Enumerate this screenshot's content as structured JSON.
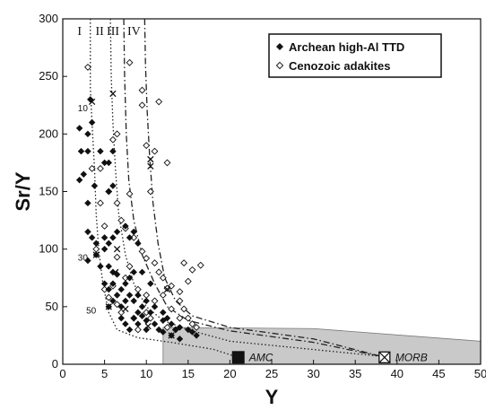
{
  "chart_data": {
    "type": "scatter",
    "xlabel": "Y",
    "ylabel": "Sr/Y",
    "xlim": [
      0,
      50
    ],
    "ylim": [
      0,
      300
    ],
    "xticks": [
      0,
      5,
      10,
      15,
      20,
      25,
      30,
      35,
      40,
      45,
      50
    ],
    "yticks": [
      0,
      50,
      100,
      150,
      200,
      250,
      300
    ],
    "grid": false,
    "legend_position": "top-right",
    "series": [
      {
        "name": "Archean high-Al TTD",
        "marker": "filled-diamond",
        "points": [
          [
            2.0,
            205
          ],
          [
            2.2,
            185
          ],
          [
            2.5,
            165
          ],
          [
            2.0,
            160
          ],
          [
            3.0,
            200
          ],
          [
            3.3,
            230
          ],
          [
            3.5,
            210
          ],
          [
            3.0,
            185
          ],
          [
            4.5,
            185
          ],
          [
            5.0,
            175
          ],
          [
            5.5,
            175
          ],
          [
            6.0,
            185
          ],
          [
            3.0,
            140
          ],
          [
            3.8,
            155
          ],
          [
            5.5,
            150
          ],
          [
            6.0,
            155
          ],
          [
            3.0,
            115
          ],
          [
            3.5,
            110
          ],
          [
            4.0,
            105
          ],
          [
            3.0,
            90
          ],
          [
            4.0,
            95
          ],
          [
            5.0,
            100
          ],
          [
            5.0,
            110
          ],
          [
            5.5,
            105
          ],
          [
            6.0,
            110
          ],
          [
            6.5,
            115
          ],
          [
            7.5,
            120
          ],
          [
            8.0,
            110
          ],
          [
            8.5,
            115
          ],
          [
            9.0,
            105
          ],
          [
            4.5,
            85
          ],
          [
            5.5,
            85
          ],
          [
            6.0,
            80
          ],
          [
            6.5,
            78
          ],
          [
            5.0,
            70
          ],
          [
            5.5,
            65
          ],
          [
            6.0,
            70
          ],
          [
            6.5,
            60
          ],
          [
            7.0,
            65
          ],
          [
            7.5,
            70
          ],
          [
            8.0,
            75
          ],
          [
            8.5,
            80
          ],
          [
            9.5,
            80
          ],
          [
            10.5,
            70
          ],
          [
            5.5,
            50
          ],
          [
            6.0,
            55
          ],
          [
            7.0,
            50
          ],
          [
            7.5,
            55
          ],
          [
            8.0,
            60
          ],
          [
            8.5,
            55
          ],
          [
            9.0,
            60
          ],
          [
            9.5,
            50
          ],
          [
            10.0,
            55
          ],
          [
            11.0,
            50
          ],
          [
            12.0,
            45
          ],
          [
            7.0,
            40
          ],
          [
            7.5,
            35
          ],
          [
            8.0,
            30
          ],
          [
            8.5,
            40
          ],
          [
            9.0,
            35
          ],
          [
            9.5,
            42
          ],
          [
            10.0,
            38
          ],
          [
            10.5,
            45
          ],
          [
            11.0,
            35
          ],
          [
            11.5,
            30
          ],
          [
            12.0,
            38
          ],
          [
            12.5,
            40
          ],
          [
            13.0,
            35
          ],
          [
            13.5,
            30
          ],
          [
            14.0,
            32
          ],
          [
            15.0,
            30
          ],
          [
            15.5,
            28
          ],
          [
            16.0,
            25
          ],
          [
            12.0,
            28
          ],
          [
            13.0,
            25
          ],
          [
            14.0,
            22
          ],
          [
            9.0,
            45
          ],
          [
            10.0,
            30
          ]
        ]
      },
      {
        "name": "Cenozoic adakites",
        "marker": "open-diamond",
        "points": [
          [
            3.0,
            258
          ],
          [
            8.0,
            262
          ],
          [
            9.5,
            238
          ],
          [
            9.5,
            225
          ],
          [
            10.0,
            190
          ],
          [
            11.5,
            228
          ],
          [
            11.0,
            185
          ],
          [
            12.5,
            175
          ],
          [
            10.5,
            150
          ],
          [
            8.0,
            148
          ],
          [
            5.5,
            150
          ],
          [
            6.0,
            195
          ],
          [
            6.5,
            200
          ],
          [
            3.5,
            170
          ],
          [
            4.5,
            170
          ],
          [
            7.0,
            125
          ],
          [
            7.5,
            118
          ],
          [
            8.5,
            110
          ],
          [
            9.5,
            98
          ],
          [
            10.0,
            92
          ],
          [
            11.0,
            88
          ],
          [
            11.5,
            80
          ],
          [
            12.0,
            75
          ],
          [
            12.5,
            66
          ],
          [
            13.0,
            68
          ],
          [
            14.0,
            63
          ],
          [
            14.5,
            88
          ],
          [
            15.5,
            82
          ],
          [
            16.5,
            86
          ],
          [
            15.0,
            72
          ],
          [
            14.0,
            55
          ],
          [
            14.5,
            48
          ],
          [
            15.0,
            40
          ],
          [
            13.5,
            30
          ],
          [
            9.0,
            30
          ],
          [
            10.0,
            45
          ],
          [
            11.0,
            55
          ],
          [
            12.0,
            60
          ],
          [
            10.5,
            40
          ],
          [
            8.5,
            40
          ],
          [
            7.0,
            45
          ],
          [
            6.5,
            52
          ],
          [
            5.5,
            58
          ],
          [
            5.0,
            65
          ],
          [
            6.0,
            68
          ],
          [
            7.5,
            75
          ],
          [
            8.0,
            85
          ],
          [
            9.0,
            65
          ],
          [
            10.0,
            60
          ],
          [
            13.0,
            48
          ],
          [
            15.5,
            35
          ],
          [
            16.0,
            32
          ],
          [
            12.5,
            32
          ],
          [
            14.0,
            40
          ],
          [
            6.5,
            140
          ],
          [
            5.0,
            120
          ],
          [
            4.0,
            100
          ],
          [
            4.5,
            140
          ],
          [
            6.5,
            93
          ]
        ]
      }
    ],
    "curves": [
      {
        "label": "I",
        "style": "dotted",
        "points": [
          [
            3.3,
            300
          ],
          [
            3.3,
            240
          ],
          [
            3.5,
            210
          ],
          [
            3.8,
            170
          ],
          [
            4.0,
            130
          ],
          [
            4.3,
            100
          ],
          [
            4.8,
            70
          ],
          [
            5.5,
            45
          ],
          [
            6.5,
            30
          ],
          [
            9,
            23
          ],
          [
            13,
            19
          ],
          [
            18,
            13
          ],
          [
            21,
            6
          ]
        ]
      },
      {
        "label": "II",
        "style": "dotted",
        "points": [
          [
            5.7,
            300
          ],
          [
            5.8,
            250
          ],
          [
            6.0,
            210
          ],
          [
            6.3,
            170
          ],
          [
            6.7,
            130
          ],
          [
            7.5,
            95
          ],
          [
            8.5,
            70
          ],
          [
            10,
            50
          ],
          [
            12,
            38
          ],
          [
            15,
            30
          ],
          [
            20,
            20
          ],
          [
            38,
            7
          ]
        ]
      },
      {
        "label": "III",
        "style": "dash-dot",
        "points": [
          [
            7.3,
            300
          ],
          [
            7.4,
            250
          ],
          [
            7.6,
            200
          ],
          [
            7.9,
            160
          ],
          [
            8.5,
            125
          ],
          [
            9.5,
            95
          ],
          [
            11,
            70
          ],
          [
            12.5,
            50
          ],
          [
            15,
            38
          ],
          [
            20,
            29
          ],
          [
            30,
            19
          ],
          [
            38,
            7
          ]
        ]
      },
      {
        "label": "IV",
        "style": "dash-dot",
        "points": [
          [
            9.8,
            300
          ],
          [
            9.9,
            260
          ],
          [
            10.1,
            220
          ],
          [
            10.4,
            180
          ],
          [
            10.8,
            140
          ],
          [
            11.4,
            105
          ],
          [
            12.2,
            75
          ],
          [
            13.5,
            55
          ],
          [
            15.5,
            42
          ],
          [
            20,
            32
          ],
          [
            30,
            22
          ],
          [
            38,
            7
          ]
        ]
      }
    ],
    "curve_tick_labels": [
      {
        "text": "10",
        "x": 1.8,
        "y": 223
      },
      {
        "text": "30",
        "x": 1.8,
        "y": 93
      },
      {
        "text": "50",
        "x": 2.8,
        "y": 47
      }
    ],
    "x_markers": [
      [
        3.5,
        228
      ],
      [
        6.0,
        235
      ],
      [
        6.5,
        100
      ],
      [
        10.5,
        178
      ],
      [
        10.5,
        172
      ],
      [
        4.0,
        95
      ],
      [
        6.3,
        80
      ],
      [
        12.5,
        65
      ],
      [
        5.5,
        50
      ],
      [
        7.5,
        48
      ],
      [
        10.2,
        33
      ],
      [
        13.0,
        25
      ]
    ],
    "shaded_region": [
      [
        12,
        0
      ],
      [
        12,
        32
      ],
      [
        30,
        31
      ],
      [
        50,
        20
      ],
      [
        50,
        0
      ]
    ],
    "reference_points": [
      {
        "label": "AMC",
        "x": 21,
        "y": 6,
        "marker": "filled-square"
      },
      {
        "label": "MORB",
        "x": 38.5,
        "y": 6,
        "marker": "crossed-square"
      }
    ]
  }
}
